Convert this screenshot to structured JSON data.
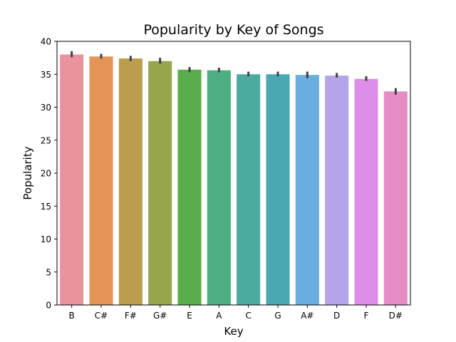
{
  "chart_data": {
    "type": "bar",
    "title": "Popularity by Key of Songs",
    "xlabel": "Key",
    "ylabel": "Popularity",
    "ylim": [
      0,
      40
    ],
    "yticks": [
      0,
      5,
      10,
      15,
      20,
      25,
      30,
      35,
      40
    ],
    "grid": false,
    "legend": "none",
    "categories": [
      "B",
      "C#",
      "F#",
      "G#",
      "E",
      "A",
      "C",
      "G",
      "A#",
      "D",
      "F",
      "D#"
    ],
    "values": [
      38.0,
      37.7,
      37.4,
      37.0,
      35.7,
      35.6,
      35.0,
      35.0,
      34.9,
      34.8,
      34.3,
      32.4
    ],
    "error_low": [
      37.6,
      37.4,
      37.0,
      36.6,
      35.3,
      35.3,
      34.7,
      34.7,
      34.4,
      34.5,
      34.0,
      31.9
    ],
    "error_high": [
      38.5,
      38.1,
      37.8,
      37.5,
      36.1,
      36.0,
      35.4,
      35.4,
      35.4,
      35.2,
      34.7,
      32.9
    ],
    "colors": [
      "#e8939d",
      "#e39456",
      "#b89e4e",
      "#97a64a",
      "#5aad4b",
      "#4cae81",
      "#4aab9e",
      "#4aa8b3",
      "#6aaee0",
      "#b5a4e8",
      "#dd8ee6",
      "#e68dc7"
    ],
    "error_color": "#404040"
  }
}
